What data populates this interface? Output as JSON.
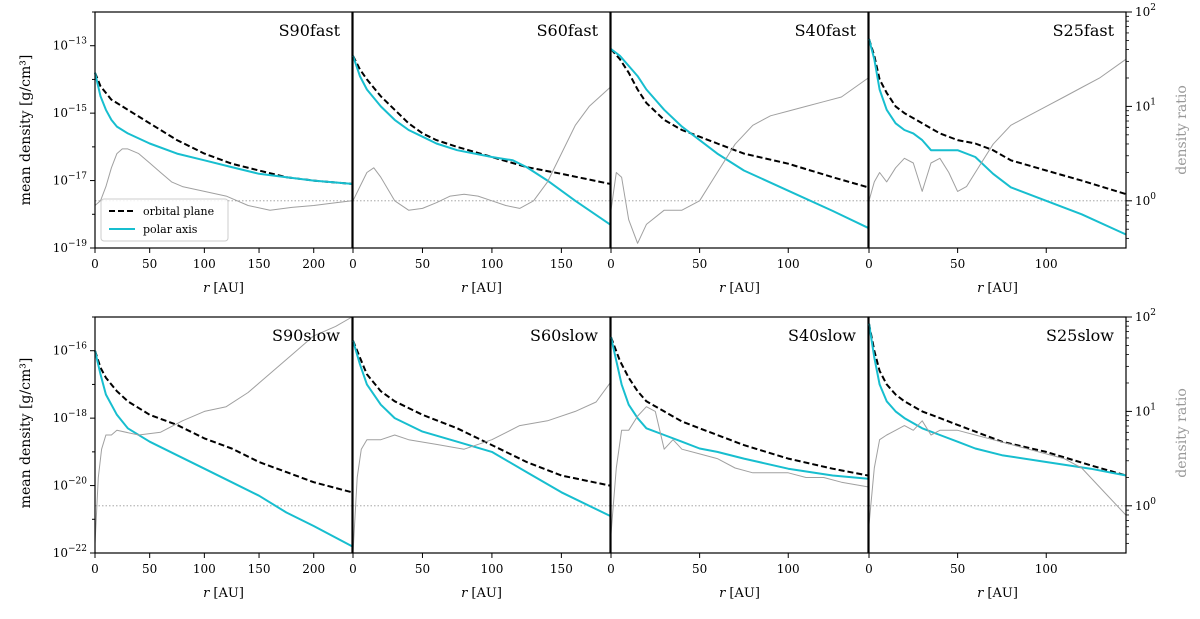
{
  "figure": {
    "ylabel_left": "mean density [g/cm³]",
    "ylabel_right": "density ratio",
    "xlabel": "r [AU]",
    "legend": [
      {
        "label": "orbital plane",
        "style": "dashed",
        "color": "#000000"
      },
      {
        "label": "polar axis",
        "style": "solid",
        "color": "#17becf"
      }
    ],
    "ratio_color": "#a0a0a0",
    "ratio_reference_line": 1
  },
  "chart_data": [
    {
      "type": "line",
      "title": "S90fast",
      "row": "fast",
      "xlim": [
        0,
        235
      ],
      "ylim_log": [
        -19,
        -12
      ],
      "ratio_ylim_log": [
        -0.5,
        2
      ],
      "xticks": [
        0,
        50,
        100,
        150,
        200
      ],
      "yticks": [
        "10^-13",
        "10^-15",
        "10^-17",
        "10^-19"
      ],
      "series": [
        {
          "name": "orbital plane",
          "x": [
            0,
            5,
            10,
            15,
            20,
            30,
            50,
            75,
            100,
            125,
            150,
            175,
            200,
            235
          ],
          "y_log": [
            -13.8,
            -14.2,
            -14.4,
            -14.6,
            -14.7,
            -14.9,
            -15.3,
            -15.8,
            -16.2,
            -16.5,
            -16.7,
            -16.9,
            -17.0,
            -17.1
          ]
        },
        {
          "name": "polar axis",
          "x": [
            0,
            5,
            10,
            15,
            20,
            30,
            50,
            75,
            100,
            125,
            150,
            175,
            200,
            235
          ],
          "y_log": [
            -13.8,
            -14.5,
            -14.9,
            -15.2,
            -15.4,
            -15.6,
            -15.9,
            -16.2,
            -16.4,
            -16.6,
            -16.8,
            -16.9,
            -17.0,
            -17.1
          ]
        },
        {
          "name": "density ratio",
          "x": [
            0,
            5,
            10,
            15,
            20,
            25,
            30,
            40,
            50,
            60,
            70,
            80,
            100,
            120,
            140,
            160,
            180,
            200,
            220,
            235
          ],
          "ratio_log": [
            -0.05,
            0,
            0.15,
            0.35,
            0.5,
            0.55,
            0.55,
            0.5,
            0.4,
            0.3,
            0.2,
            0.15,
            0.1,
            0.05,
            -0.05,
            -0.1,
            -0.07,
            -0.05,
            -0.02,
            0
          ]
        }
      ]
    },
    {
      "type": "line",
      "title": "S60fast",
      "row": "fast",
      "xlim": [
        0,
        185
      ],
      "ylim_log": [
        -19,
        -12
      ],
      "xticks": [
        0,
        50,
        100,
        150
      ],
      "series": [
        {
          "name": "orbital plane",
          "x": [
            0,
            5,
            10,
            20,
            30,
            40,
            50,
            60,
            75,
            100,
            125,
            150,
            185
          ],
          "y_log": [
            -13.3,
            -13.7,
            -14.0,
            -14.5,
            -14.9,
            -15.3,
            -15.6,
            -15.8,
            -16.0,
            -16.3,
            -16.6,
            -16.8,
            -17.1
          ]
        },
        {
          "name": "polar axis",
          "x": [
            0,
            5,
            10,
            20,
            30,
            40,
            50,
            60,
            75,
            100,
            115,
            125,
            140,
            160,
            185
          ],
          "y_log": [
            -13.3,
            -13.9,
            -14.3,
            -14.8,
            -15.2,
            -15.5,
            -15.7,
            -15.9,
            -16.1,
            -16.3,
            -16.4,
            -16.6,
            -17.0,
            -17.6,
            -18.3
          ]
        },
        {
          "name": "density ratio",
          "x": [
            0,
            5,
            10,
            15,
            20,
            30,
            40,
            50,
            60,
            70,
            80,
            90,
            100,
            110,
            120,
            130,
            140,
            150,
            160,
            170,
            185
          ],
          "ratio_log": [
            0,
            0.15,
            0.3,
            0.35,
            0.25,
            0,
            -0.1,
            -0.08,
            -0.02,
            0.05,
            0.07,
            0.05,
            0,
            -0.05,
            -0.08,
            0,
            0.2,
            0.5,
            0.8,
            1.0,
            1.2
          ]
        }
      ]
    },
    {
      "type": "line",
      "title": "S40fast",
      "row": "fast",
      "xlim": [
        0,
        145
      ],
      "ylim_log": [
        -19,
        -12
      ],
      "xticks": [
        0,
        50,
        100
      ],
      "series": [
        {
          "name": "orbital plane",
          "x": [
            0,
            5,
            10,
            15,
            20,
            30,
            40,
            50,
            60,
            75,
            100,
            125,
            145
          ],
          "y_log": [
            -13.1,
            -13.4,
            -13.8,
            -14.3,
            -14.7,
            -15.2,
            -15.5,
            -15.7,
            -15.9,
            -16.2,
            -16.5,
            -16.9,
            -17.2
          ]
        },
        {
          "name": "polar axis",
          "x": [
            0,
            5,
            10,
            15,
            20,
            30,
            40,
            50,
            60,
            75,
            100,
            125,
            145
          ],
          "y_log": [
            -13.1,
            -13.3,
            -13.6,
            -13.9,
            -14.3,
            -14.9,
            -15.4,
            -15.8,
            -16.2,
            -16.7,
            -17.3,
            -17.9,
            -18.4
          ]
        },
        {
          "name": "density ratio",
          "x": [
            0,
            3,
            6,
            10,
            15,
            20,
            30,
            40,
            50,
            60,
            70,
            80,
            90,
            100,
            110,
            120,
            130,
            145
          ],
          "ratio_log": [
            -0.1,
            0.3,
            0.25,
            -0.2,
            -0.45,
            -0.25,
            -0.1,
            -0.1,
            0,
            0.3,
            0.6,
            0.8,
            0.9,
            0.95,
            1.0,
            1.05,
            1.1,
            1.3
          ]
        }
      ]
    },
    {
      "type": "line",
      "title": "S25fast",
      "row": "fast",
      "xlim": [
        0,
        145
      ],
      "ylim_log": [
        -19,
        -12
      ],
      "ratio_ylim_log": [
        -0.5,
        2
      ],
      "xticks": [
        0,
        50,
        100
      ],
      "ratio_yticks": [
        "10^2",
        "10^1",
        "10^0"
      ],
      "series": [
        {
          "name": "orbital plane",
          "x": [
            0,
            3,
            6,
            10,
            15,
            20,
            30,
            40,
            50,
            60,
            70,
            80,
            100,
            120,
            145
          ],
          "y_log": [
            -12.8,
            -13.3,
            -14.0,
            -14.4,
            -14.8,
            -15.0,
            -15.3,
            -15.6,
            -15.8,
            -15.9,
            -16.1,
            -16.4,
            -16.7,
            -17.0,
            -17.4
          ]
        },
        {
          "name": "polar axis",
          "x": [
            0,
            3,
            6,
            10,
            15,
            20,
            25,
            30,
            35,
            40,
            50,
            60,
            70,
            80,
            100,
            120,
            145
          ],
          "y_log": [
            -12.8,
            -13.4,
            -14.3,
            -14.9,
            -15.3,
            -15.5,
            -15.6,
            -15.8,
            -16.1,
            -16.1,
            -16.1,
            -16.3,
            -16.8,
            -17.2,
            -17.6,
            -18.0,
            -18.6
          ]
        },
        {
          "name": "density ratio",
          "x": [
            0,
            3,
            6,
            10,
            15,
            20,
            25,
            30,
            35,
            40,
            45,
            50,
            55,
            60,
            70,
            80,
            90,
            100,
            110,
            120,
            130,
            145
          ],
          "ratio_log": [
            0,
            0.2,
            0.3,
            0.2,
            0.35,
            0.45,
            0.4,
            0.1,
            0.4,
            0.45,
            0.3,
            0.1,
            0.15,
            0.3,
            0.6,
            0.8,
            0.9,
            1.0,
            1.1,
            1.2,
            1.3,
            1.5
          ]
        }
      ]
    },
    {
      "type": "line",
      "title": "S90slow",
      "row": "slow",
      "xlim": [
        0,
        235
      ],
      "ylim_log": [
        -22,
        -15
      ],
      "ratio_ylim_log": [
        -0.5,
        2
      ],
      "xticks": [
        0,
        50,
        100,
        150,
        200
      ],
      "yticks": [
        "10^-16",
        "10^-18",
        "10^-20",
        "10^-22"
      ],
      "series": [
        {
          "name": "orbital plane",
          "x": [
            0,
            5,
            10,
            20,
            30,
            50,
            75,
            100,
            125,
            150,
            175,
            200,
            235
          ],
          "y_log": [
            -16.0,
            -16.5,
            -16.8,
            -17.2,
            -17.5,
            -17.9,
            -18.2,
            -18.6,
            -18.9,
            -19.3,
            -19.6,
            -19.9,
            -20.2
          ]
        },
        {
          "name": "polar axis",
          "x": [
            0,
            5,
            10,
            20,
            30,
            50,
            75,
            100,
            125,
            150,
            175,
            200,
            235
          ],
          "y_log": [
            -16.0,
            -16.7,
            -17.3,
            -17.9,
            -18.3,
            -18.7,
            -19.1,
            -19.5,
            -19.9,
            -20.3,
            -20.8,
            -21.2,
            -21.8
          ]
        },
        {
          "name": "density ratio",
          "x": [
            0,
            3,
            6,
            10,
            15,
            20,
            40,
            60,
            80,
            100,
            120,
            140,
            160,
            180,
            200,
            220,
            235
          ],
          "ratio_log": [
            -0.4,
            0.3,
            0.6,
            0.75,
            0.75,
            0.8,
            0.75,
            0.78,
            0.9,
            1.0,
            1.05,
            1.2,
            1.4,
            1.6,
            1.8,
            1.9,
            2.0
          ]
        }
      ]
    },
    {
      "type": "line",
      "title": "S60slow",
      "row": "slow",
      "xlim": [
        0,
        185
      ],
      "ylim_log": [
        -22,
        -15
      ],
      "xticks": [
        0,
        50,
        100,
        150
      ],
      "series": [
        {
          "name": "orbital plane",
          "x": [
            0,
            5,
            10,
            20,
            30,
            50,
            75,
            100,
            125,
            150,
            185
          ],
          "y_log": [
            -15.7,
            -16.2,
            -16.7,
            -17.2,
            -17.5,
            -17.9,
            -18.3,
            -18.8,
            -19.3,
            -19.7,
            -20.0
          ]
        },
        {
          "name": "polar axis",
          "x": [
            0,
            5,
            10,
            20,
            30,
            50,
            75,
            100,
            125,
            150,
            185
          ],
          "y_log": [
            -15.7,
            -16.4,
            -17.0,
            -17.6,
            -18.0,
            -18.4,
            -18.7,
            -19.0,
            -19.6,
            -20.2,
            -20.9
          ]
        },
        {
          "name": "density ratio",
          "x": [
            0,
            3,
            6,
            10,
            20,
            30,
            40,
            60,
            80,
            100,
            120,
            140,
            160,
            175,
            185
          ],
          "ratio_log": [
            -0.5,
            0.3,
            0.6,
            0.7,
            0.7,
            0.75,
            0.7,
            0.65,
            0.6,
            0.7,
            0.85,
            0.9,
            1.0,
            1.1,
            1.3
          ]
        }
      ]
    },
    {
      "type": "line",
      "title": "S40slow",
      "row": "slow",
      "xlim": [
        0,
        145
      ],
      "ylim_log": [
        -22,
        -15
      ],
      "xticks": [
        0,
        50,
        100
      ],
      "series": [
        {
          "name": "orbital plane",
          "x": [
            0,
            5,
            10,
            15,
            20,
            30,
            40,
            50,
            60,
            75,
            100,
            125,
            145
          ],
          "y_log": [
            -15.6,
            -16.3,
            -16.8,
            -17.2,
            -17.5,
            -17.8,
            -18.1,
            -18.3,
            -18.5,
            -18.8,
            -19.2,
            -19.5,
            -19.7
          ]
        },
        {
          "name": "polar axis",
          "x": [
            0,
            3,
            6,
            10,
            15,
            20,
            30,
            40,
            50,
            60,
            75,
            100,
            125,
            145
          ],
          "y_log": [
            -15.6,
            -16.3,
            -17.0,
            -17.6,
            -18.0,
            -18.3,
            -18.5,
            -18.7,
            -18.9,
            -19.0,
            -19.2,
            -19.5,
            -19.7,
            -19.8
          ]
        },
        {
          "name": "density ratio",
          "x": [
            0,
            3,
            6,
            10,
            15,
            20,
            25,
            30,
            35,
            40,
            50,
            60,
            70,
            80,
            90,
            100,
            110,
            120,
            130,
            145
          ],
          "ratio_log": [
            -0.3,
            0.4,
            0.8,
            0.8,
            0.95,
            1.05,
            1.0,
            0.6,
            0.7,
            0.6,
            0.55,
            0.5,
            0.4,
            0.35,
            0.35,
            0.35,
            0.3,
            0.3,
            0.25,
            0.2
          ]
        }
      ]
    },
    {
      "type": "line",
      "title": "S25slow",
      "row": "slow",
      "xlim": [
        0,
        145
      ],
      "ylim_log": [
        -22,
        -15
      ],
      "ratio_ylim_log": [
        -0.5,
        2
      ],
      "xticks": [
        0,
        50,
        100
      ],
      "ratio_yticks": [
        "10^2",
        "10^1",
        "10^0"
      ],
      "series": [
        {
          "name": "orbital plane",
          "x": [
            0,
            3,
            6,
            10,
            15,
            20,
            30,
            40,
            50,
            60,
            75,
            100,
            125,
            145
          ],
          "y_log": [
            -15.2,
            -16.0,
            -16.6,
            -17.0,
            -17.3,
            -17.5,
            -17.8,
            -18.0,
            -18.2,
            -18.4,
            -18.7,
            -19.0,
            -19.4,
            -19.7
          ]
        },
        {
          "name": "polar axis",
          "x": [
            0,
            3,
            6,
            10,
            15,
            20,
            30,
            40,
            50,
            60,
            75,
            100,
            125,
            145
          ],
          "y_log": [
            -15.2,
            -16.2,
            -17.0,
            -17.5,
            -17.8,
            -18.0,
            -18.3,
            -18.5,
            -18.7,
            -18.9,
            -19.1,
            -19.3,
            -19.5,
            -19.7
          ]
        },
        {
          "name": "density ratio",
          "x": [
            0,
            3,
            6,
            10,
            15,
            20,
            25,
            30,
            35,
            40,
            50,
            60,
            70,
            80,
            90,
            100,
            110,
            120,
            130,
            145
          ],
          "ratio_log": [
            -0.2,
            0.4,
            0.7,
            0.75,
            0.8,
            0.85,
            0.8,
            0.9,
            0.75,
            0.8,
            0.8,
            0.75,
            0.7,
            0.65,
            0.6,
            0.55,
            0.5,
            0.4,
            0.2,
            -0.1
          ]
        }
      ]
    }
  ]
}
